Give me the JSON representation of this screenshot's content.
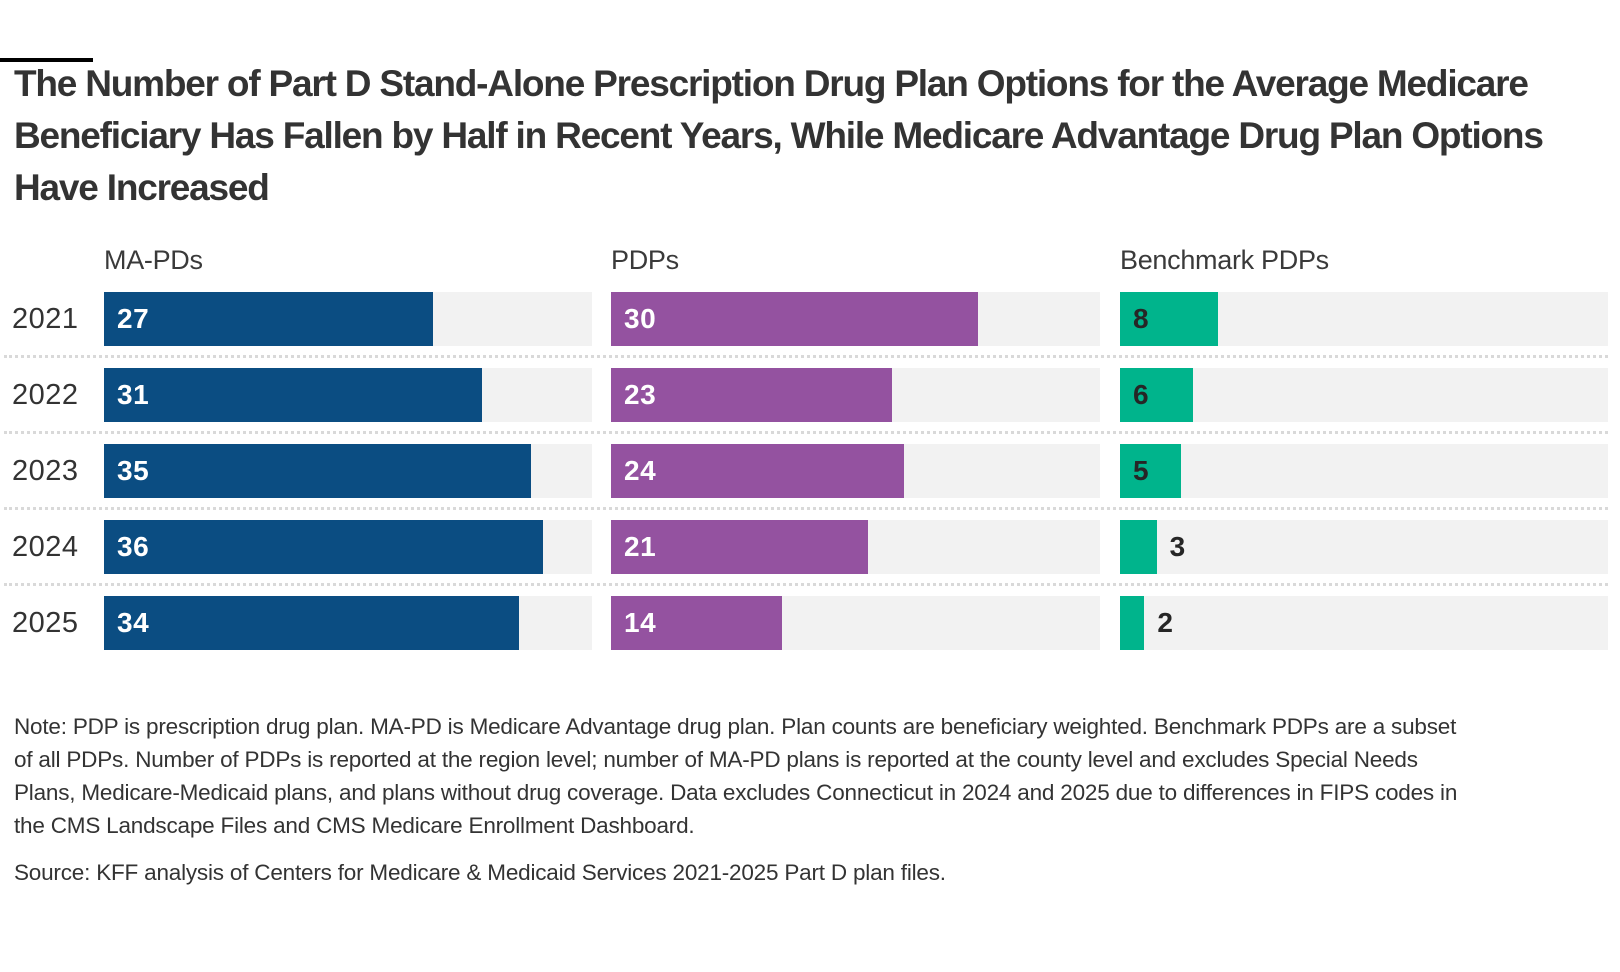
{
  "page": {
    "accent_bar_color": "#000000",
    "background_color": "#ffffff"
  },
  "title": "The Number of Part D Stand-Alone Prescription Drug Plan Options for the Average Medicare Beneficiary Has Fallen by Half in Recent Years, While Medicare Advantage Drug Plan Options Have Increased",
  "chart_data": {
    "type": "bar",
    "orientation": "horizontal",
    "layout": "three side-by-side bar columns, one per series, shared year rows",
    "categories": [
      "2021",
      "2022",
      "2023",
      "2024",
      "2025"
    ],
    "series": [
      {
        "name": "MA-PDs",
        "color": "#0B4D82",
        "values": [
          27,
          31,
          35,
          36,
          34
        ],
        "label_color": "#ffffff"
      },
      {
        "name": "PDPs",
        "color": "#9452A0",
        "values": [
          30,
          23,
          24,
          21,
          14
        ],
        "label_color": "#ffffff"
      },
      {
        "name": "Benchmark PDPs",
        "color": "#00B48C",
        "values": [
          8,
          6,
          5,
          3,
          2
        ],
        "label_color": "#262626"
      }
    ],
    "xmax": 40,
    "track_color": "#f2f2f2",
    "grid": false,
    "value_labels": true,
    "row_separator_style": "dotted",
    "row_separator_color": "#d9d9d9"
  },
  "note": "Note: PDP is prescription drug plan. MA-PD is Medicare Advantage drug plan. Plan counts are beneficiary weighted. Benchmark PDPs are a subset of all PDPs. Number of PDPs is reported at the region level; number of MA-PD plans is reported at the county level and excludes Special Needs Plans, Medicare-Medicaid plans, and plans without drug coverage. Data excludes Connecticut in 2024 and 2025 due to differences in FIPS codes in the CMS Landscape Files and CMS Medicare Enrollment Dashboard.",
  "source": "Source: KFF analysis of Centers for Medicare & Medicaid Services 2021-2025 Part D plan files."
}
